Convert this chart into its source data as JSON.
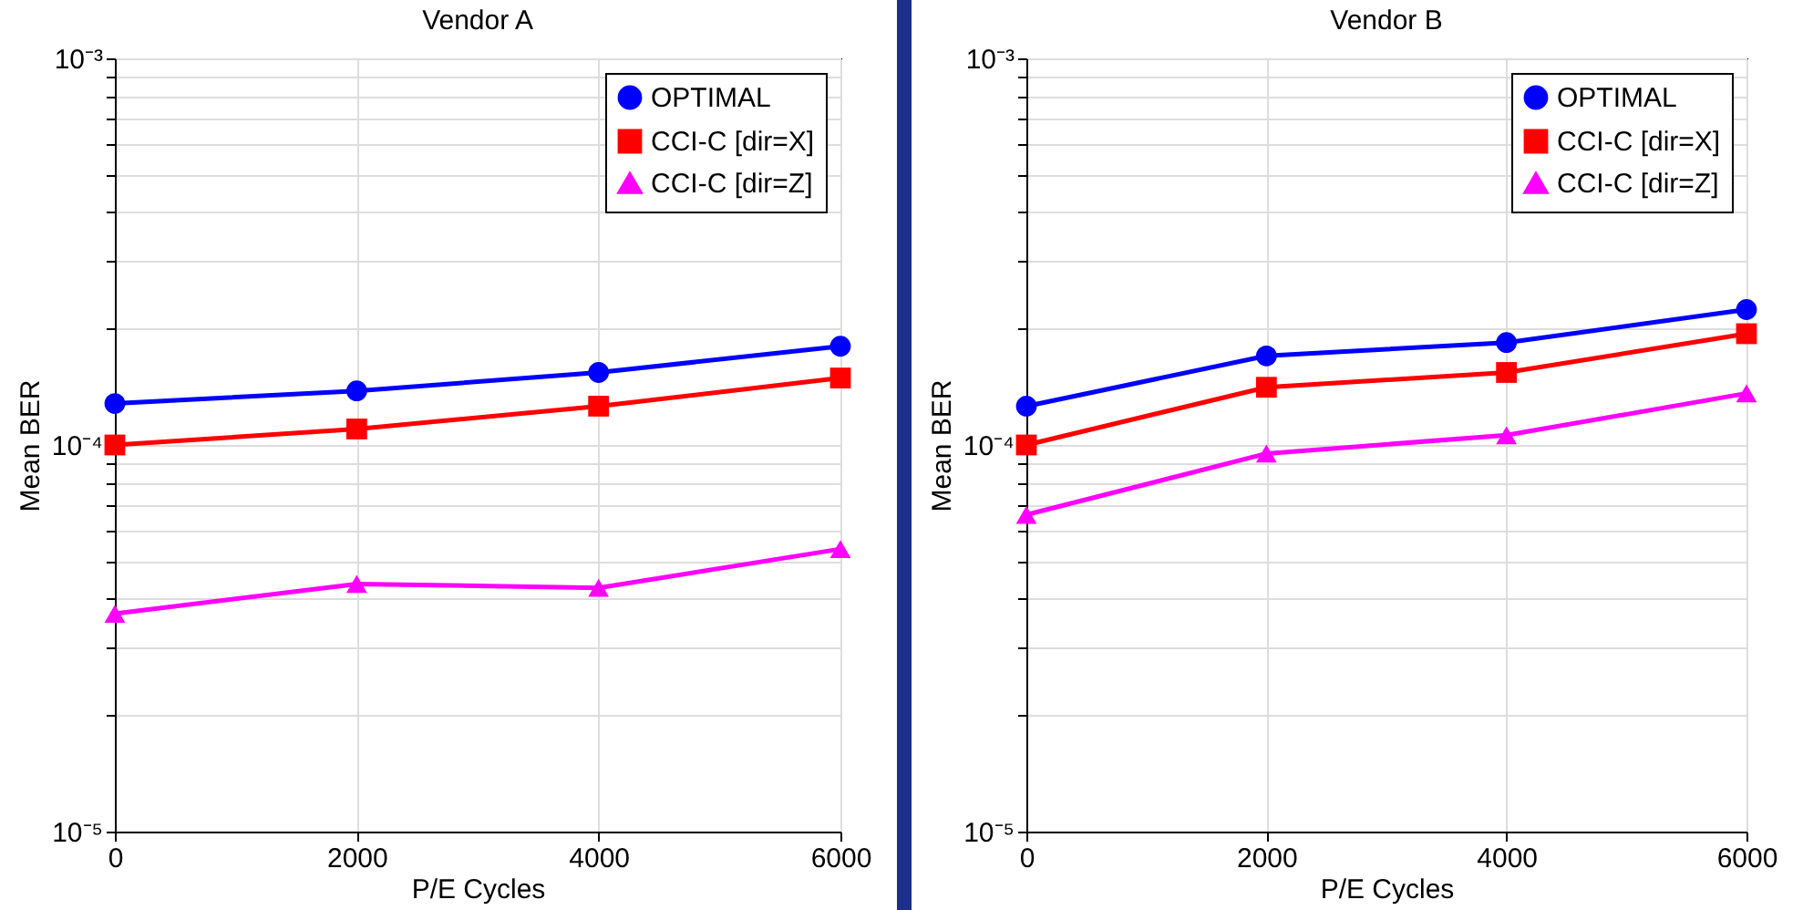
{
  "chart_data": [
    {
      "type": "line",
      "title": "Vendor A",
      "xlabel": "P/E Cycles",
      "ylabel": "Mean BER",
      "x": [
        0,
        2000,
        4000,
        6000
      ],
      "xlim": [
        0,
        6000
      ],
      "xticks": [
        0,
        2000,
        4000,
        6000
      ],
      "log": "y",
      "ylim": [
        1e-05,
        0.001
      ],
      "yticks": [
        {
          "value": 1e-05,
          "label": "10⁻⁵"
        },
        {
          "value": 2e-05,
          "label": null
        },
        {
          "value": 3e-05,
          "label": null
        },
        {
          "value": 4e-05,
          "label": null
        },
        {
          "value": 5e-05,
          "label": null
        },
        {
          "value": 6e-05,
          "label": null
        },
        {
          "value": 7e-05,
          "label": null
        },
        {
          "value": 8e-05,
          "label": null
        },
        {
          "value": 9e-05,
          "label": null
        },
        {
          "value": 0.0001,
          "label": "10⁻⁴"
        },
        {
          "value": 0.0002,
          "label": null
        },
        {
          "value": 0.0003,
          "label": null
        },
        {
          "value": 0.0004,
          "label": null
        },
        {
          "value": 0.0005,
          "label": null
        },
        {
          "value": 0.0006,
          "label": null
        },
        {
          "value": 0.0007,
          "label": null
        },
        {
          "value": 0.0008,
          "label": null
        },
        {
          "value": 0.0009,
          "label": null
        },
        {
          "value": 0.001,
          "label": "10⁻³"
        }
      ],
      "grid": true,
      "legend": "top right",
      "series": [
        {
          "name": "OPTIMAL",
          "color": "#0000ff",
          "marker": "circle",
          "values": [
            0.000128,
            0.000138,
            0.000154,
            0.00018
          ]
        },
        {
          "name": "CCI-C [dir=X]",
          "color": "#ff0000",
          "marker": "square",
          "values": [
            0.0001,
            0.00011,
            0.000126,
            0.000149
          ]
        },
        {
          "name": "CCI-C [dir=Z]",
          "color": "#ff00ff",
          "marker": "triangle",
          "values": [
            3.66e-05,
            4.37e-05,
            4.27e-05,
            5.38e-05
          ]
        }
      ]
    },
    {
      "type": "line",
      "title": "Vendor B",
      "xlabel": "P/E Cycles",
      "ylabel": "Mean BER",
      "x": [
        0,
        2000,
        4000,
        6000
      ],
      "xlim": [
        0,
        6000
      ],
      "xticks": [
        0,
        2000,
        4000,
        6000
      ],
      "log": "y",
      "ylim": [
        1e-05,
        0.001
      ],
      "yticks": [
        {
          "value": 1e-05,
          "label": "10⁻⁵"
        },
        {
          "value": 2e-05,
          "label": null
        },
        {
          "value": 3e-05,
          "label": null
        },
        {
          "value": 4e-05,
          "label": null
        },
        {
          "value": 5e-05,
          "label": null
        },
        {
          "value": 6e-05,
          "label": null
        },
        {
          "value": 7e-05,
          "label": null
        },
        {
          "value": 8e-05,
          "label": null
        },
        {
          "value": 9e-05,
          "label": null
        },
        {
          "value": 0.0001,
          "label": "10⁻⁴"
        },
        {
          "value": 0.0002,
          "label": null
        },
        {
          "value": 0.0003,
          "label": null
        },
        {
          "value": 0.0004,
          "label": null
        },
        {
          "value": 0.0005,
          "label": null
        },
        {
          "value": 0.0006,
          "label": null
        },
        {
          "value": 0.0007,
          "label": null
        },
        {
          "value": 0.0008,
          "label": null
        },
        {
          "value": 0.0009,
          "label": null
        },
        {
          "value": 0.001,
          "label": "10⁻³"
        }
      ],
      "grid": true,
      "legend": "top right",
      "series": [
        {
          "name": "OPTIMAL",
          "color": "#0000ff",
          "marker": "circle",
          "values": [
            0.000126,
            0.00017,
            0.000184,
            0.000224
          ]
        },
        {
          "name": "CCI-C [dir=X]",
          "color": "#ff0000",
          "marker": "square",
          "values": [
            0.0001,
            0.000141,
            0.000154,
            0.000194
          ]
        },
        {
          "name": "CCI-C [dir=Z]",
          "color": "#ff00ff",
          "marker": "triangle",
          "values": [
            6.6e-05,
            9.5e-05,
            0.000106,
            0.000136
          ]
        }
      ]
    }
  ]
}
